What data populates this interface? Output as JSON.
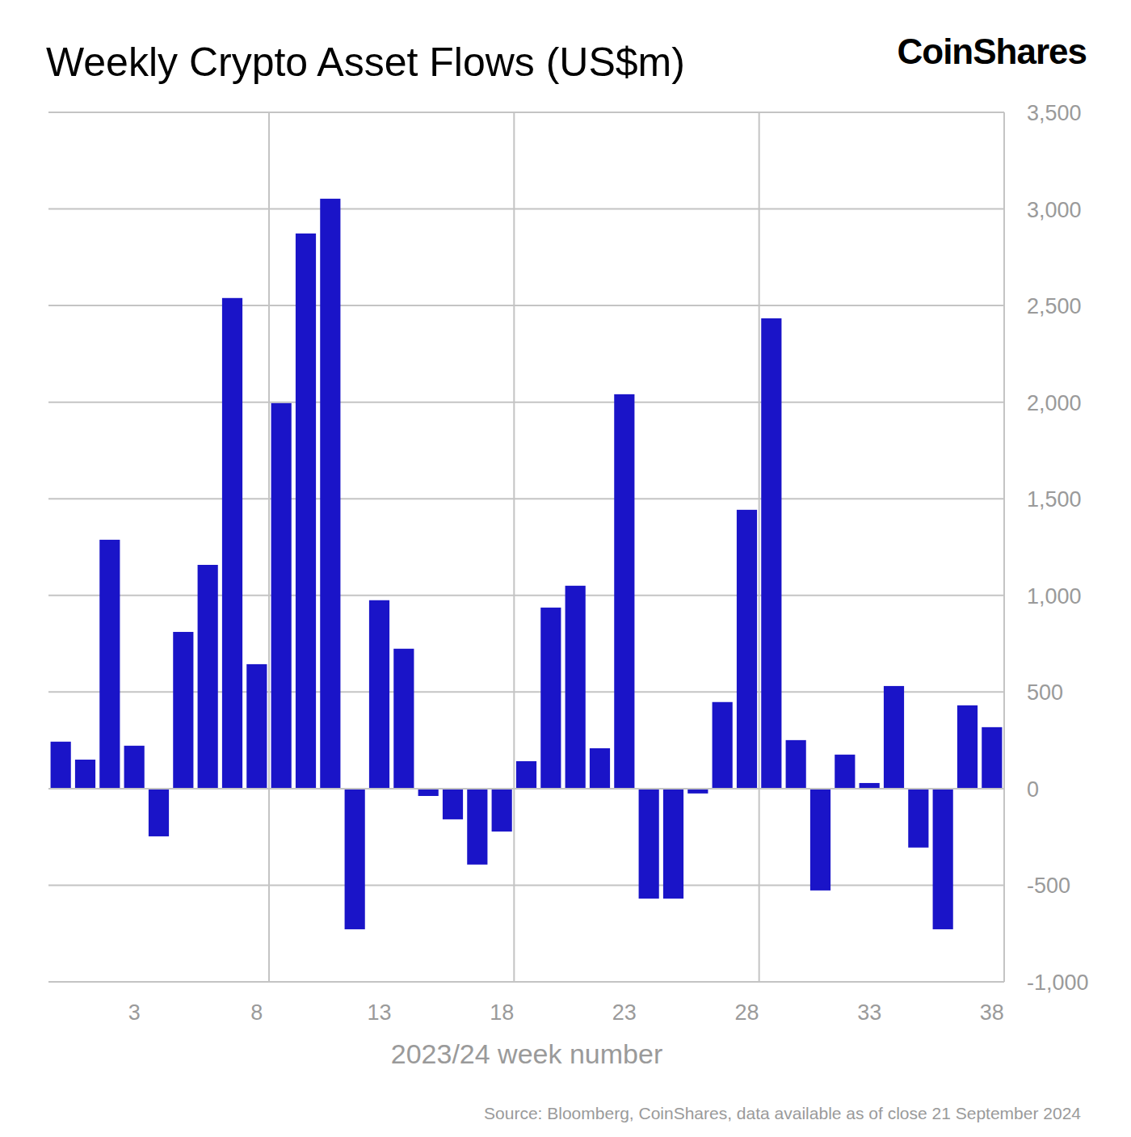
{
  "chart_data": {
    "type": "bar",
    "title": "Weekly Crypto Asset Flows (US$m)",
    "logo": "CoinShares",
    "x_label": "2023/24 week number",
    "source": "Source: Bloomberg, CoinShares, data available as of close 21 September 2024",
    "categories": [
      null,
      null,
      null,
      "3",
      null,
      null,
      null,
      null,
      "8",
      null,
      null,
      null,
      null,
      "13",
      null,
      null,
      null,
      null,
      "18",
      null,
      null,
      null,
      null,
      "23",
      null,
      null,
      null,
      null,
      "28",
      null,
      null,
      null,
      null,
      "33",
      null,
      null,
      null,
      null,
      "38"
    ],
    "values": [
      243,
      150,
      1288,
      222,
      -247,
      811,
      1158,
      2539,
      644,
      1995,
      2873,
      3053,
      -728,
      975,
      724,
      -38,
      -159,
      -393,
      -222,
      142,
      937,
      1050,
      209,
      2041,
      -569,
      -569,
      -25,
      448,
      1443,
      2434,
      251,
      -527,
      176,
      29,
      531,
      -305,
      -728,
      431,
      318
    ],
    "color": "#1a14c8",
    "ylim": [
      -1000,
      3500
    ],
    "yticks": [
      {
        "value": -1000,
        "label": "-1,000"
      },
      -500,
      0,
      500,
      {
        "value": 1000,
        "label": "1,000"
      },
      {
        "value": 1500,
        "label": "1,500"
      },
      {
        "value": 2000,
        "label": "2,000"
      },
      {
        "value": 2500,
        "label": "2,500"
      },
      {
        "value": 3000,
        "label": "3,000"
      },
      {
        "value": 3500,
        "label": "3,500"
      }
    ],
    "grid": true
  }
}
